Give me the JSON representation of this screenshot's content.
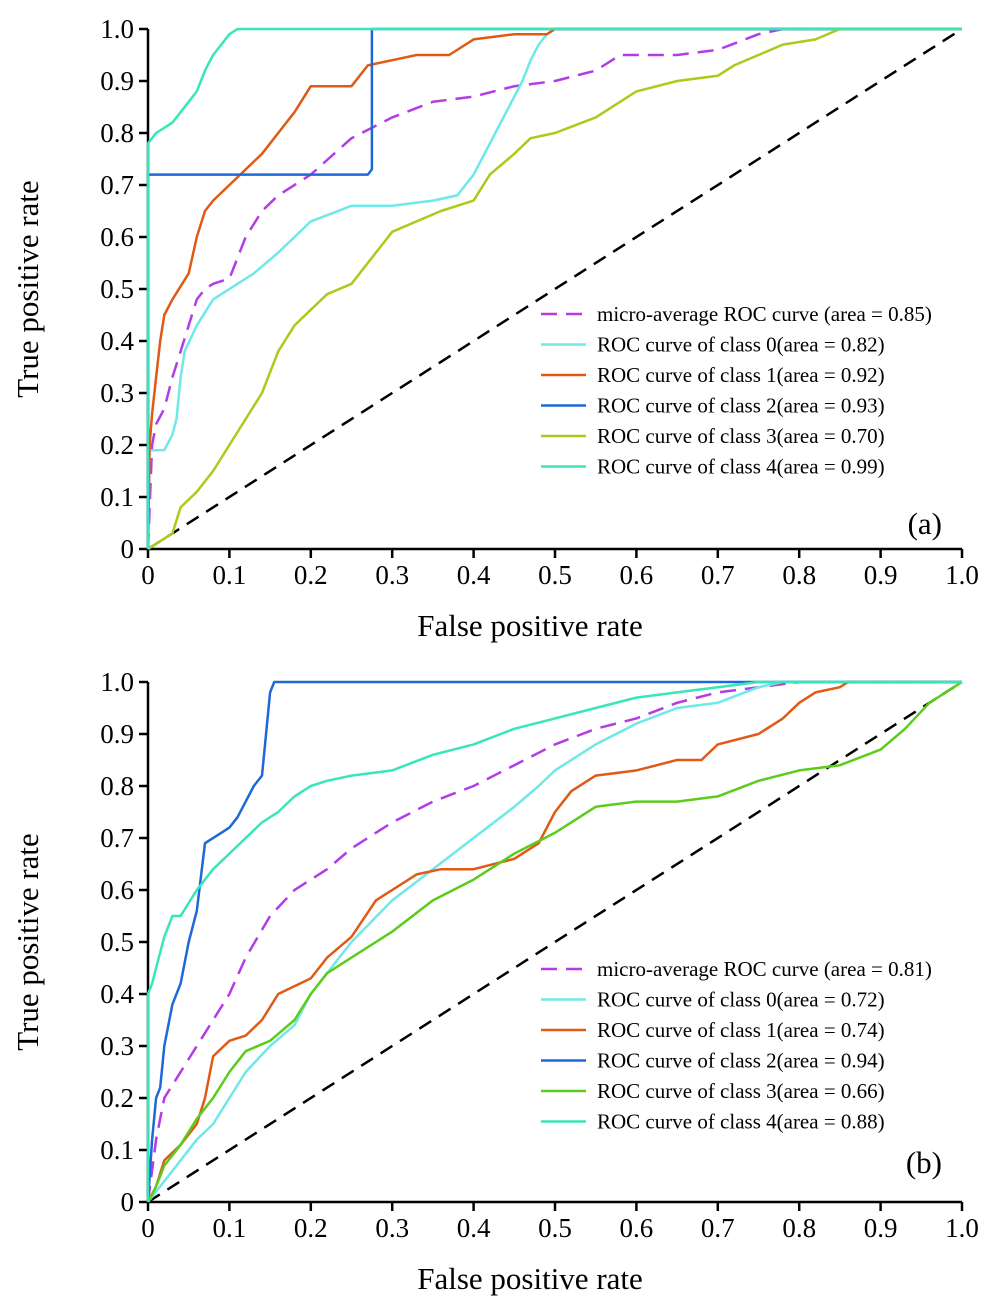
{
  "chart_data": [
    {
      "type": "line",
      "panel_label": "(a)",
      "xlabel": "False positive rate",
      "ylabel": "True positive rate",
      "xlim": [
        0,
        1
      ],
      "ylim": [
        0,
        1
      ],
      "x_ticks": [
        "0",
        "0.1",
        "0.2",
        "0.3",
        "0.4",
        "0.5",
        "0.6",
        "0.7",
        "0.8",
        "0.9",
        "1.0"
      ],
      "y_ticks": [
        "0",
        "0.1",
        "0.2",
        "0.3",
        "0.4",
        "0.5",
        "0.6",
        "0.7",
        "0.8",
        "0.9",
        "1.0"
      ],
      "grid": false,
      "legend_position": "center-right",
      "diagonal": {
        "x": [
          0,
          1
        ],
        "y": [
          0,
          1
        ],
        "color": "#000000",
        "style": "dashed"
      },
      "series": [
        {
          "name": "micro-average ROC curve (area = 0.85)",
          "color": "#b23ce6",
          "style": "dashed",
          "x": [
            0,
            0.005,
            0.01,
            0.02,
            0.03,
            0.04,
            0.05,
            0.06,
            0.07,
            0.08,
            0.1,
            0.12,
            0.14,
            0.16,
            0.2,
            0.25,
            0.3,
            0.35,
            0.4,
            0.45,
            0.5,
            0.55,
            0.58,
            0.6,
            0.65,
            0.7,
            0.75,
            0.78,
            1.0
          ],
          "y": [
            0,
            0.2,
            0.24,
            0.27,
            0.33,
            0.38,
            0.43,
            0.48,
            0.5,
            0.51,
            0.52,
            0.6,
            0.65,
            0.68,
            0.72,
            0.79,
            0.83,
            0.86,
            0.87,
            0.89,
            0.9,
            0.92,
            0.95,
            0.95,
            0.95,
            0.96,
            0.99,
            1.0,
            1.0
          ]
        },
        {
          "name": "ROC curve of class 0(area = 0.82)",
          "color": "#6fe8e8",
          "style": "solid",
          "x": [
            0,
            0.002,
            0.02,
            0.03,
            0.035,
            0.04,
            0.045,
            0.06,
            0.08,
            0.1,
            0.13,
            0.16,
            0.2,
            0.25,
            0.3,
            0.35,
            0.38,
            0.4,
            0.42,
            0.44,
            0.46,
            0.47,
            0.48,
            0.49,
            0.5,
            1.0
          ],
          "y": [
            0,
            0.19,
            0.19,
            0.22,
            0.25,
            0.33,
            0.38,
            0.43,
            0.48,
            0.5,
            0.53,
            0.57,
            0.63,
            0.66,
            0.66,
            0.67,
            0.68,
            0.72,
            0.78,
            0.84,
            0.9,
            0.94,
            0.97,
            0.99,
            1.0,
            1.0
          ]
        },
        {
          "name": "ROC curve of class 1(area = 0.92)",
          "color": "#e05a16",
          "style": "solid",
          "x": [
            0,
            0.002,
            0.005,
            0.01,
            0.015,
            0.02,
            0.03,
            0.05,
            0.06,
            0.07,
            0.08,
            0.1,
            0.12,
            0.14,
            0.16,
            0.18,
            0.2,
            0.22,
            0.25,
            0.27,
            0.3,
            0.33,
            0.35,
            0.37,
            0.4,
            0.45,
            0.49,
            0.5,
            1.0
          ],
          "y": [
            0,
            0.2,
            0.26,
            0.33,
            0.4,
            0.45,
            0.48,
            0.53,
            0.6,
            0.65,
            0.67,
            0.7,
            0.73,
            0.76,
            0.8,
            0.84,
            0.89,
            0.89,
            0.89,
            0.93,
            0.94,
            0.95,
            0.95,
            0.95,
            0.98,
            0.99,
            0.99,
            1.0,
            1.0
          ]
        },
        {
          "name": "ROC curve of class 2(area = 0.93)",
          "color": "#1e68d8",
          "style": "solid",
          "x": [
            0,
            0,
            0.27,
            0.275,
            0.275,
            1.0
          ],
          "y": [
            0,
            0.72,
            0.72,
            0.73,
            1.0,
            1.0
          ]
        },
        {
          "name": "ROC curve of class 3(area = 0.70)",
          "color": "#a8cc1c",
          "style": "solid",
          "x": [
            0,
            0.01,
            0.03,
            0.04,
            0.06,
            0.08,
            0.1,
            0.12,
            0.14,
            0.16,
            0.18,
            0.2,
            0.22,
            0.25,
            0.28,
            0.3,
            0.33,
            0.36,
            0.4,
            0.42,
            0.45,
            0.47,
            0.5,
            0.55,
            0.6,
            0.65,
            0.7,
            0.72,
            0.75,
            0.78,
            0.82,
            0.85,
            1.0
          ],
          "y": [
            0,
            0.01,
            0.03,
            0.08,
            0.11,
            0.15,
            0.2,
            0.25,
            0.3,
            0.38,
            0.43,
            0.46,
            0.49,
            0.51,
            0.57,
            0.61,
            0.63,
            0.65,
            0.67,
            0.72,
            0.76,
            0.79,
            0.8,
            0.83,
            0.88,
            0.9,
            0.91,
            0.93,
            0.95,
            0.97,
            0.98,
            1.0,
            1.0
          ]
        },
        {
          "name": "ROC curve of class 4(area = 0.99)",
          "color": "#38e6b8",
          "style": "solid",
          "x": [
            0,
            0,
            0.01,
            0.02,
            0.03,
            0.04,
            0.05,
            0.06,
            0.07,
            0.08,
            0.09,
            0.1,
            0.11,
            1.0
          ],
          "y": [
            0,
            0.78,
            0.8,
            0.81,
            0.82,
            0.84,
            0.86,
            0.88,
            0.92,
            0.95,
            0.97,
            0.99,
            1.0,
            1.0
          ]
        }
      ]
    },
    {
      "type": "line",
      "panel_label": "(b)",
      "xlabel": "False positive rate",
      "ylabel": "True positive rate",
      "xlim": [
        0,
        1
      ],
      "ylim": [
        0,
        1
      ],
      "x_ticks": [
        "0",
        "0.1",
        "0.2",
        "0.3",
        "0.4",
        "0.5",
        "0.6",
        "0.7",
        "0.8",
        "0.9",
        "1.0"
      ],
      "y_ticks": [
        "0",
        "0.1",
        "0.2",
        "0.3",
        "0.4",
        "0.5",
        "0.6",
        "0.7",
        "0.8",
        "0.9",
        "1.0"
      ],
      "grid": false,
      "legend_position": "lower-right",
      "diagonal": {
        "x": [
          0,
          1
        ],
        "y": [
          0,
          1
        ],
        "color": "#000000",
        "style": "dashed"
      },
      "series": [
        {
          "name": "micro-average ROC curve (area = 0.81)",
          "color": "#b23ce6",
          "style": "dashed",
          "x": [
            0,
            0.01,
            0.02,
            0.04,
            0.06,
            0.08,
            0.1,
            0.12,
            0.15,
            0.18,
            0.2,
            0.22,
            0.25,
            0.3,
            0.35,
            0.4,
            0.45,
            0.5,
            0.55,
            0.6,
            0.65,
            0.7,
            0.75,
            0.8,
            1.0
          ],
          "y": [
            0,
            0.12,
            0.2,
            0.25,
            0.3,
            0.35,
            0.4,
            0.47,
            0.55,
            0.6,
            0.62,
            0.64,
            0.68,
            0.73,
            0.77,
            0.8,
            0.84,
            0.88,
            0.91,
            0.93,
            0.96,
            0.98,
            0.99,
            1.0,
            1.0
          ]
        },
        {
          "name": "ROC curve of class 0(area = 0.72)",
          "color": "#6fe8e8",
          "style": "solid",
          "x": [
            0,
            0.02,
            0.04,
            0.06,
            0.08,
            0.1,
            0.12,
            0.15,
            0.18,
            0.2,
            0.22,
            0.25,
            0.3,
            0.35,
            0.4,
            0.45,
            0.48,
            0.5,
            0.55,
            0.6,
            0.65,
            0.7,
            0.75,
            0.78,
            1.0
          ],
          "y": [
            0,
            0.04,
            0.08,
            0.12,
            0.15,
            0.2,
            0.25,
            0.3,
            0.34,
            0.4,
            0.44,
            0.5,
            0.58,
            0.64,
            0.7,
            0.76,
            0.8,
            0.83,
            0.88,
            0.92,
            0.95,
            0.96,
            0.99,
            1.0,
            1.0
          ]
        },
        {
          "name": "ROC curve of class 1(area = 0.74)",
          "color": "#e05a16",
          "style": "solid",
          "x": [
            0,
            0.01,
            0.02,
            0.04,
            0.06,
            0.07,
            0.08,
            0.1,
            0.12,
            0.14,
            0.16,
            0.2,
            0.22,
            0.25,
            0.28,
            0.3,
            0.33,
            0.36,
            0.4,
            0.45,
            0.48,
            0.5,
            0.52,
            0.55,
            0.6,
            0.65,
            0.68,
            0.7,
            0.75,
            0.78,
            0.8,
            0.82,
            0.85,
            0.86,
            1.0
          ],
          "y": [
            0,
            0.03,
            0.08,
            0.11,
            0.15,
            0.2,
            0.28,
            0.31,
            0.32,
            0.35,
            0.4,
            0.43,
            0.47,
            0.51,
            0.58,
            0.6,
            0.63,
            0.64,
            0.64,
            0.66,
            0.69,
            0.75,
            0.79,
            0.82,
            0.83,
            0.85,
            0.85,
            0.88,
            0.9,
            0.93,
            0.96,
            0.98,
            0.99,
            1.0,
            1.0
          ]
        },
        {
          "name": "ROC curve of class 2(area = 0.94)",
          "color": "#1e68d8",
          "style": "solid",
          "x": [
            0,
            0.005,
            0.01,
            0.015,
            0.02,
            0.03,
            0.04,
            0.05,
            0.06,
            0.07,
            0.09,
            0.1,
            0.11,
            0.12,
            0.13,
            0.14,
            0.15,
            0.155,
            0.16,
            0.5,
            0.62,
            1.0
          ],
          "y": [
            0,
            0.12,
            0.2,
            0.22,
            0.3,
            0.38,
            0.42,
            0.5,
            0.56,
            0.69,
            0.71,
            0.72,
            0.74,
            0.77,
            0.8,
            0.82,
            0.98,
            1.0,
            1.0,
            1.0,
            1.0,
            1.0
          ]
        },
        {
          "name": "ROC curve of class 3(area = 0.66)",
          "color": "#5ccc1c",
          "style": "solid",
          "x": [
            0,
            0.01,
            0.02,
            0.04,
            0.06,
            0.08,
            0.1,
            0.12,
            0.15,
            0.18,
            0.2,
            0.22,
            0.25,
            0.28,
            0.3,
            0.35,
            0.4,
            0.45,
            0.5,
            0.55,
            0.6,
            0.65,
            0.7,
            0.75,
            0.8,
            0.85,
            0.9,
            0.93,
            0.96,
            1.0
          ],
          "y": [
            0,
            0.03,
            0.07,
            0.11,
            0.16,
            0.2,
            0.25,
            0.29,
            0.31,
            0.35,
            0.4,
            0.44,
            0.47,
            0.5,
            0.52,
            0.58,
            0.62,
            0.67,
            0.71,
            0.76,
            0.77,
            0.77,
            0.78,
            0.81,
            0.83,
            0.84,
            0.87,
            0.91,
            0.96,
            1.0
          ]
        },
        {
          "name": "ROC curve of class 4(area = 0.88)",
          "color": "#38e6b8",
          "style": "solid",
          "x": [
            0,
            0,
            0.005,
            0.01,
            0.02,
            0.03,
            0.04,
            0.06,
            0.08,
            0.1,
            0.12,
            0.14,
            0.16,
            0.18,
            0.2,
            0.22,
            0.25,
            0.3,
            0.35,
            0.4,
            0.45,
            0.5,
            0.55,
            0.6,
            0.65,
            0.7,
            0.75,
            0.8,
            0.85,
            0.9,
            0.95,
            1.0
          ],
          "y": [
            0,
            0.4,
            0.42,
            0.45,
            0.51,
            0.55,
            0.55,
            0.6,
            0.64,
            0.67,
            0.7,
            0.73,
            0.75,
            0.78,
            0.8,
            0.81,
            0.82,
            0.83,
            0.86,
            0.88,
            0.91,
            0.93,
            0.95,
            0.97,
            0.98,
            0.99,
            1.0,
            1.0,
            1.0,
            1.0,
            1.0,
            1.0
          ]
        }
      ]
    }
  ]
}
